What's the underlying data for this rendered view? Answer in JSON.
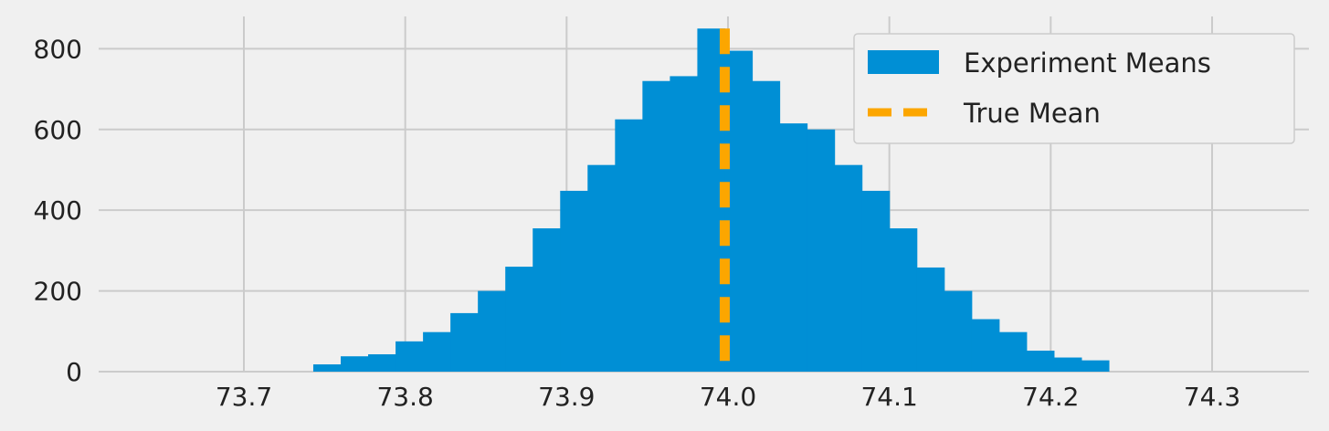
{
  "chart_data": {
    "type": "bar",
    "title": "",
    "xlabel": "",
    "ylabel": "",
    "xlim": [
      73.61,
      74.36
    ],
    "ylim": [
      0,
      880
    ],
    "grid": true,
    "legend_placement": "top-right",
    "xticks": [
      "73.7",
      "73.8",
      "73.9",
      "74.0",
      "74.1",
      "74.2",
      "74.3"
    ],
    "xtick_values": [
      73.7,
      73.8,
      73.9,
      74.0,
      74.1,
      74.2,
      74.3
    ],
    "yticks": [
      "0",
      "200",
      "400",
      "600",
      "800"
    ],
    "ytick_values": [
      0,
      200,
      400,
      600,
      800
    ],
    "series": [
      {
        "name": "Experiment Means",
        "color": "#008fd5",
        "bins": [
          [
            73.743,
            73.76,
            18
          ],
          [
            73.76,
            73.777,
            38
          ],
          [
            73.777,
            73.794,
            43
          ],
          [
            73.794,
            73.811,
            75
          ],
          [
            73.811,
            73.828,
            98
          ],
          [
            73.828,
            73.845,
            145
          ],
          [
            73.845,
            73.862,
            200
          ],
          [
            73.862,
            73.879,
            260
          ],
          [
            73.879,
            73.896,
            355
          ],
          [
            73.896,
            73.913,
            448
          ],
          [
            73.913,
            73.93,
            512
          ],
          [
            73.93,
            73.947,
            625
          ],
          [
            73.947,
            73.964,
            720
          ],
          [
            73.964,
            73.981,
            732
          ],
          [
            73.981,
            73.998,
            850
          ],
          [
            73.998,
            74.015,
            795
          ],
          [
            74.015,
            74.032,
            720
          ],
          [
            74.032,
            74.049,
            615
          ],
          [
            74.049,
            74.066,
            600
          ],
          [
            74.066,
            74.083,
            512
          ],
          [
            74.083,
            74.1,
            448
          ],
          [
            74.1,
            74.117,
            355
          ],
          [
            74.117,
            74.134,
            258
          ],
          [
            74.134,
            74.151,
            200
          ],
          [
            74.151,
            74.168,
            130
          ],
          [
            74.168,
            74.185,
            98
          ],
          [
            74.185,
            74.202,
            52
          ],
          [
            74.202,
            74.219,
            35
          ],
          [
            74.219,
            74.236,
            28
          ]
        ]
      },
      {
        "name": "True Mean",
        "color": "#fca600",
        "type": "vline",
        "x": 73.998
      }
    ]
  }
}
